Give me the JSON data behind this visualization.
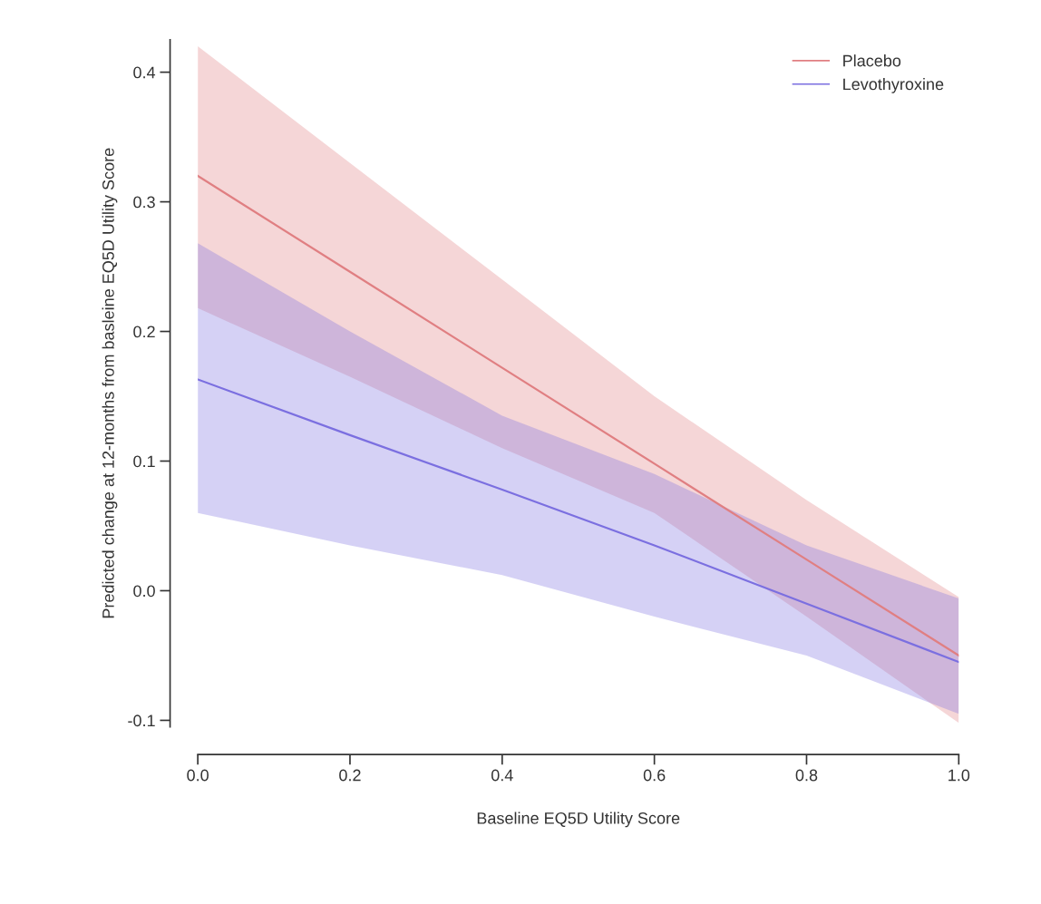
{
  "chart_data": {
    "type": "line",
    "xlabel": "Baseline EQ5D Utility Score",
    "ylabel": "Predicted change at 12-months from basleine EQ5D Utility Score",
    "x": [
      0,
      0.2,
      0.4,
      0.6,
      0.8,
      1.0
    ],
    "series": [
      {
        "name": "Placebo",
        "color": "#e07f82",
        "values": [
          0.32,
          0.246,
          0.172,
          0.098,
          0.024,
          -0.05
        ],
        "lower": [
          0.218,
          0.165,
          0.11,
          0.06,
          -0.02,
          -0.102
        ],
        "upper": [
          0.42,
          0.33,
          0.24,
          0.15,
          0.07,
          -0.005
        ]
      },
      {
        "name": "Levothyroxine",
        "color": "#7b6fe0",
        "values": [
          0.163,
          0.12,
          0.078,
          0.035,
          -0.01,
          -0.055
        ],
        "lower": [
          0.06,
          0.035,
          0.012,
          -0.02,
          -0.05,
          -0.095
        ],
        "upper": [
          0.268,
          0.2,
          0.135,
          0.09,
          0.035,
          -0.006
        ]
      }
    ],
    "xlim": [
      0,
      1
    ],
    "ylim": [
      -0.105,
      0.425
    ],
    "xticks": [
      {
        "value": 0,
        "label": "0.0"
      },
      0.2,
      0.4,
      0.6,
      0.8,
      {
        "value": 1,
        "label": "1.0"
      }
    ],
    "yticks": [
      -0.1,
      {
        "value": 0,
        "label": "0.0"
      },
      0.1,
      0.2,
      0.3,
      0.4
    ],
    "legend": "top right",
    "grid": false,
    "marker": "none",
    "line_style": "solid"
  }
}
